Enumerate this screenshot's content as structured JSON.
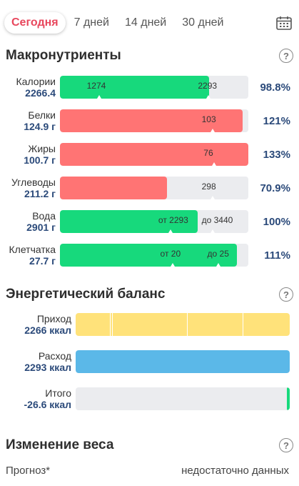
{
  "tabs": [
    "Сегодня",
    "7 дней",
    "14 дней",
    "30 дней"
  ],
  "active_tab": "Сегодня",
  "macros": {
    "title": "Макронутриенты",
    "rows": [
      {
        "name": "Калории",
        "value": "2266.4",
        "percent": "98.8%",
        "fill": 0.79,
        "color": "green",
        "marks": [
          {
            "text": "1274",
            "pos": 0.15
          },
          {
            "text": "2293",
            "pos": 0.74
          }
        ]
      },
      {
        "name": "Белки",
        "value": "124.9 г",
        "percent": "121%",
        "fill": 0.97,
        "color": "red",
        "marks": [
          {
            "text": "103",
            "pos": 0.76
          }
        ]
      },
      {
        "name": "Жиры",
        "value": "100.7 г",
        "percent": "133%",
        "fill": 1.0,
        "color": "red",
        "marks": [
          {
            "text": "76",
            "pos": 0.77
          }
        ]
      },
      {
        "name": "Углеводы",
        "value": "211.2 г",
        "percent": "70.9%",
        "fill": 0.57,
        "color": "red",
        "marks": [
          {
            "text": "298",
            "pos": 0.76
          }
        ]
      },
      {
        "name": "Вода",
        "value": "2901 г",
        "percent": "100%",
        "fill": 0.73,
        "color": "green",
        "marks": [
          {
            "text": "от 2293",
            "pos": 0.53
          },
          {
            "text": "до 3440",
            "pos": 0.76
          }
        ]
      },
      {
        "name": "Клетчатка",
        "value": "27.7 г",
        "percent": "111%",
        "fill": 0.94,
        "color": "green",
        "marks": [
          {
            "text": "от 20",
            "pos": 0.54
          },
          {
            "text": "до 25",
            "pos": 0.79
          }
        ]
      }
    ]
  },
  "energy": {
    "title": "Энергетический баланс",
    "rows": [
      {
        "name": "Приход",
        "value": "2266 ккал",
        "fill": 1.0,
        "color": "yellow"
      },
      {
        "name": "Расход",
        "value": "2293 ккал",
        "fill": 1.0,
        "color": "blue"
      },
      {
        "name": "Итого",
        "value": "-26.6 ккал",
        "fill": 0.012,
        "color": "green"
      }
    ]
  },
  "weight": {
    "title": "Изменение веса",
    "forecast_label": "Прогноз*",
    "forecast_value": "недостаточно данных"
  },
  "icons": {
    "calendar": "calendar-icon",
    "help": "help-circle-icon"
  }
}
